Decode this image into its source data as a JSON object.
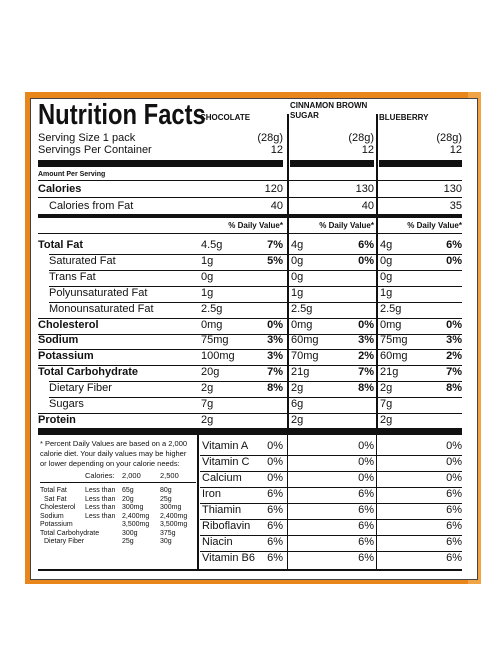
{
  "title": "Nutrition Facts",
  "flavors": [
    {
      "name": "CHOCOLATE",
      "serving_weight": "(28g)",
      "servings": "12",
      "calories": "120",
      "cal_fat": "40",
      "nutrients": [
        {
          "amt": "4.5g",
          "dv": "7%"
        },
        {
          "amt": "1g",
          "dv": "5%"
        },
        {
          "amt": "0g",
          "dv": ""
        },
        {
          "amt": "1g",
          "dv": ""
        },
        {
          "amt": "2.5g",
          "dv": ""
        },
        {
          "amt": "0mg",
          "dv": "0%"
        },
        {
          "amt": "75mg",
          "dv": "3%"
        },
        {
          "amt": "100mg",
          "dv": "3%"
        },
        {
          "amt": "20g",
          "dv": "7%"
        },
        {
          "amt": "2g",
          "dv": "8%"
        },
        {
          "amt": "7g",
          "dv": ""
        },
        {
          "amt": "2g",
          "dv": ""
        }
      ],
      "vitamins": [
        "0%",
        "0%",
        "0%",
        "6%",
        "6%",
        "6%",
        "6%",
        "6%"
      ]
    },
    {
      "name": "CINNAMON BROWN SUGAR",
      "serving_weight": "(28g)",
      "servings": "12",
      "calories": "130",
      "cal_fat": "40",
      "nutrients": [
        {
          "amt": "4g",
          "dv": "6%"
        },
        {
          "amt": "0g",
          "dv": "0%"
        },
        {
          "amt": "0g",
          "dv": ""
        },
        {
          "amt": "1g",
          "dv": ""
        },
        {
          "amt": "2.5g",
          "dv": ""
        },
        {
          "amt": "0mg",
          "dv": "0%"
        },
        {
          "amt": "60mg",
          "dv": "3%"
        },
        {
          "amt": "70mg",
          "dv": "2%"
        },
        {
          "amt": "21g",
          "dv": "7%"
        },
        {
          "amt": "2g",
          "dv": "8%"
        },
        {
          "amt": "6g",
          "dv": ""
        },
        {
          "amt": "2g",
          "dv": ""
        }
      ],
      "vitamins": [
        "0%",
        "0%",
        "0%",
        "6%",
        "6%",
        "6%",
        "6%",
        "6%"
      ]
    },
    {
      "name": "BLUEBERRY",
      "serving_weight": "(28g)",
      "servings": "12",
      "calories": "130",
      "cal_fat": "35",
      "nutrients": [
        {
          "amt": "4g",
          "dv": "6%"
        },
        {
          "amt": "0g",
          "dv": "0%"
        },
        {
          "amt": "0g",
          "dv": ""
        },
        {
          "amt": "1g",
          "dv": ""
        },
        {
          "amt": "2.5g",
          "dv": ""
        },
        {
          "amt": "0mg",
          "dv": "0%"
        },
        {
          "amt": "75mg",
          "dv": "3%"
        },
        {
          "amt": "60mg",
          "dv": "2%"
        },
        {
          "amt": "21g",
          "dv": "7%"
        },
        {
          "amt": "2g",
          "dv": "8%"
        },
        {
          "amt": "7g",
          "dv": ""
        },
        {
          "amt": "2g",
          "dv": ""
        }
      ],
      "vitamins": [
        "0%",
        "0%",
        "0%",
        "6%",
        "6%",
        "6%",
        "6%",
        "6%"
      ]
    }
  ],
  "labels": {
    "serving_size": "Serving Size 1 pack",
    "servings_per_container": "Servings Per Container",
    "amount_per_serving": "Amount Per Serving",
    "calories": "Calories",
    "calories_from_fat": "Calories from Fat",
    "daily_value_header": "% Daily Value*"
  },
  "nutrient_labels": [
    {
      "text": "Total Fat",
      "bold": true,
      "indent": false
    },
    {
      "text": "Saturated Fat",
      "bold": false,
      "indent": true
    },
    {
      "text": "Trans Fat",
      "bold": false,
      "indent": true
    },
    {
      "text": "Polyunsaturated Fat",
      "bold": false,
      "indent": true
    },
    {
      "text": "Monounsaturated Fat",
      "bold": false,
      "indent": true
    },
    {
      "text": "Cholesterol",
      "bold": true,
      "indent": false
    },
    {
      "text": "Sodium",
      "bold": true,
      "indent": false
    },
    {
      "text": "Potassium",
      "bold": true,
      "indent": false
    },
    {
      "text": "Total Carbohydrate",
      "bold": true,
      "indent": false
    },
    {
      "text": "Dietary Fiber",
      "bold": false,
      "indent": true
    },
    {
      "text": "Sugars",
      "bold": false,
      "indent": true
    },
    {
      "text": "Protein",
      "bold": true,
      "indent": false
    }
  ],
  "vitamin_labels": [
    "Vitamin A",
    "Vitamin C",
    "Calcium",
    "Iron",
    "Thiamin",
    "Riboflavin",
    "Niacin",
    "Vitamin B6"
  ],
  "footnote": {
    "lines": [
      "* Percent Daily Values are based on a 2,000",
      "calorie diet. Your daily values may be higher",
      "or lower depending on your calorie needs:"
    ],
    "header": [
      "Calories:",
      "2,000",
      "2,500"
    ],
    "rows": [
      [
        "Total Fat",
        "Less than",
        "65g",
        "80g"
      ],
      [
        "Sat Fat",
        "Less than",
        "20g",
        "25g"
      ],
      [
        "Cholesterol",
        "Less than",
        "300mg",
        "300mg"
      ],
      [
        "Sodium",
        "Less than",
        "2,400mg",
        "2,400mg"
      ],
      [
        "Potassium",
        "",
        "3,500mg",
        "3,500mg"
      ],
      [
        "Total Carbohydrate",
        "",
        "300g",
        "375g"
      ],
      [
        "Dietary Fiber",
        "",
        "25g",
        "30g"
      ]
    ]
  }
}
